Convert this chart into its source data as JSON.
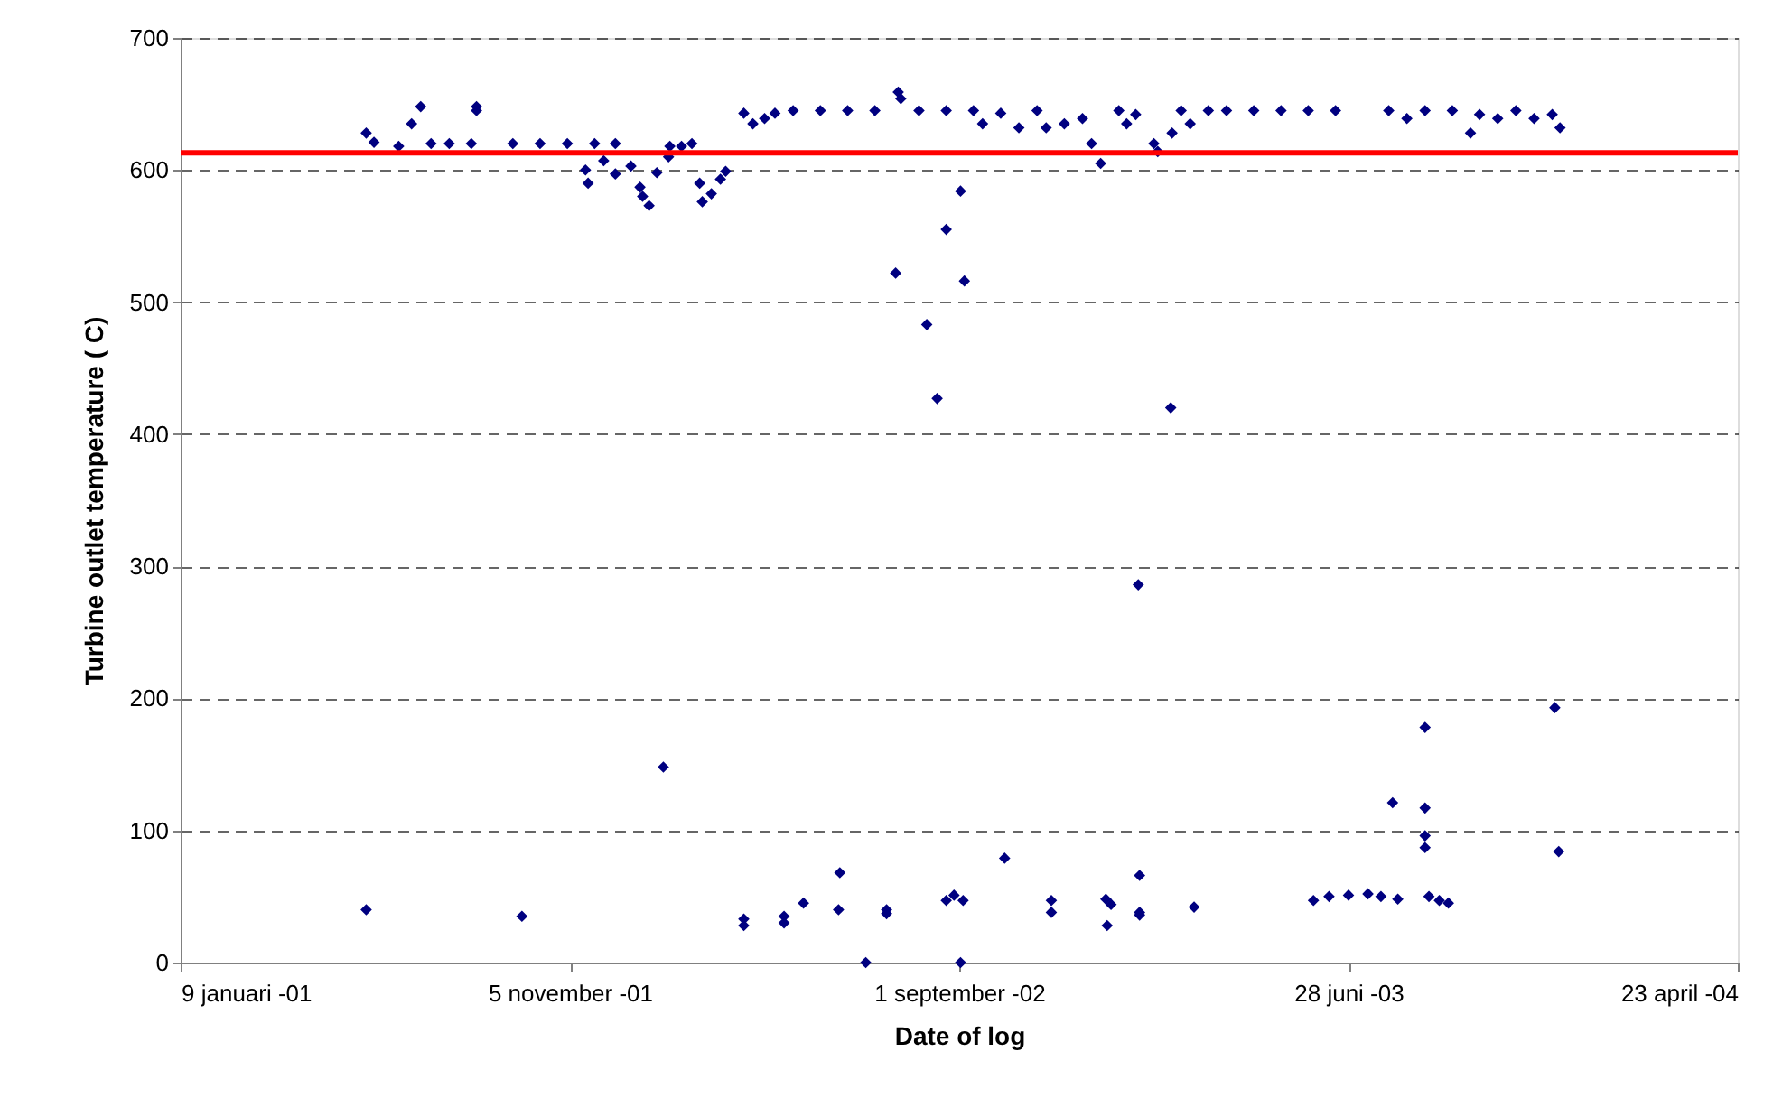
{
  "chart_data": {
    "type": "scatter",
    "xlabel": "Date of log",
    "ylabel": "Turbine outlet temperature ( C)",
    "xlim": [
      "2001-01-09",
      "2004-04-23"
    ],
    "xticks": [
      {
        "value": "2001-01-09",
        "label": "9 januari -01"
      },
      {
        "value": "2001-11-05",
        "label": "5 november -01"
      },
      {
        "value": "2002-09-01",
        "label": "1 september -02"
      },
      {
        "value": "2003-06-28",
        "label": "28 juni -03"
      },
      {
        "value": "2004-04-23",
        "label": "23 april -04"
      }
    ],
    "ylim": [
      0,
      700
    ],
    "yticks": [
      0,
      100,
      200,
      300,
      400,
      500,
      600,
      700
    ],
    "grid": "y",
    "marker": "diamond",
    "ref_lines": [
      {
        "axis": "y",
        "value": 613,
        "color": "#ff0000"
      }
    ],
    "series": [
      {
        "color": "#000080",
        "x": [
          "2001-06-01",
          "2001-06-07",
          "2001-06-26",
          "2001-07-06",
          "2001-07-13",
          "2001-07-21",
          "2001-08-04",
          "2001-08-21",
          "2001-08-25",
          "2001-08-25",
          "2001-09-22",
          "2001-10-13",
          "2001-11-03",
          "2001-11-24",
          "2001-12-10",
          "2001-11-17",
          "2001-11-19",
          "2001-12-01",
          "2001-12-10",
          "2001-12-22",
          "2001-12-29",
          "2001-12-31",
          "2002-01-05",
          "2002-01-11",
          "2002-01-20",
          "2002-01-21",
          "2002-01-30",
          "2002-02-07",
          "2002-02-13",
          "2002-02-15",
          "2002-02-22",
          "2002-03-01",
          "2002-03-05",
          "2002-03-19",
          "2002-03-26",
          "2002-04-04",
          "2002-04-12",
          "2002-04-26",
          "2002-05-17",
          "2002-06-07",
          "2002-06-28",
          "2002-07-16",
          "2002-07-18",
          "2002-08-01",
          "2002-08-22",
          "2002-09-12",
          "2002-09-19",
          "2002-10-03",
          "2002-10-17",
          "2002-10-31",
          "2002-11-07",
          "2002-11-21",
          "2002-12-05",
          "2002-12-12",
          "2002-12-19",
          "2003-01-02",
          "2003-01-08",
          "2003-01-15",
          "2003-01-29",
          "2003-02-01",
          "2003-02-12",
          "2003-02-19",
          "2003-02-26",
          "2003-03-12",
          "2003-03-26",
          "2003-04-16",
          "2003-05-07",
          "2003-05-28",
          "2003-06-18",
          "2003-07-29",
          "2003-08-12",
          "2003-08-26",
          "2003-09-16",
          "2003-09-30",
          "2003-10-07",
          "2003-10-21",
          "2003-11-04",
          "2003-11-18",
          "2003-12-02",
          "2003-12-08",
          "2001-06-01",
          "2001-09-29",
          "2002-01-16",
          "2002-03-19",
          "2002-03-19",
          "2002-04-19",
          "2002-04-19",
          "2002-05-04",
          "2002-05-31",
          "2002-06-01",
          "2002-06-21",
          "2002-07-07",
          "2002-07-07",
          "2002-07-14",
          "2002-08-07",
          "2002-08-15",
          "2002-08-22",
          "2002-09-02",
          "2002-09-05",
          "2002-08-22",
          "2002-08-28",
          "2002-09-02",
          "2002-09-04",
          "2002-10-06",
          "2002-11-11",
          "2002-11-11",
          "2002-12-24",
          "2002-12-23",
          "2002-12-27",
          "2003-01-17",
          "2003-01-18",
          "2003-01-18",
          "2003-01-18",
          "2003-02-11",
          "2003-03-01",
          "2003-06-01",
          "2003-06-13",
          "2003-06-28",
          "2003-07-13",
          "2003-07-23",
          "2003-08-05",
          "2003-08-01",
          "2003-08-26",
          "2003-08-26",
          "2003-08-26",
          "2003-08-26",
          "2003-08-29",
          "2003-09-06",
          "2003-09-13",
          "2003-12-04",
          "2003-12-07"
        ],
        "values": [
          628,
          621,
          618,
          635,
          648,
          620,
          620,
          620,
          648,
          645,
          620,
          620,
          620,
          620,
          620,
          600,
          590,
          607,
          597,
          603,
          587,
          580,
          573,
          598,
          610,
          618,
          618,
          620,
          590,
          576,
          582,
          593,
          599,
          643,
          635,
          639,
          643,
          645,
          645,
          645,
          645,
          659,
          654,
          645,
          645,
          645,
          635,
          643,
          632,
          645,
          632,
          635,
          639,
          620,
          605,
          645,
          635,
          642,
          620,
          614,
          628,
          645,
          635,
          645,
          645,
          645,
          645,
          645,
          645,
          645,
          639,
          645,
          645,
          628,
          642,
          639,
          645,
          639,
          642,
          632,
          40,
          35,
          148,
          28,
          33,
          30,
          35,
          45,
          40,
          68,
          0,
          40,
          37,
          522,
          483,
          427,
          555,
          584,
          516,
          47,
          51,
          0,
          47,
          79,
          47,
          38,
          28,
          48,
          44,
          286,
          36,
          38,
          66,
          420,
          42,
          47,
          50,
          51,
          52,
          50,
          48,
          121,
          117,
          178,
          87,
          96,
          50,
          47,
          45,
          193,
          84
        ]
      }
    ]
  }
}
